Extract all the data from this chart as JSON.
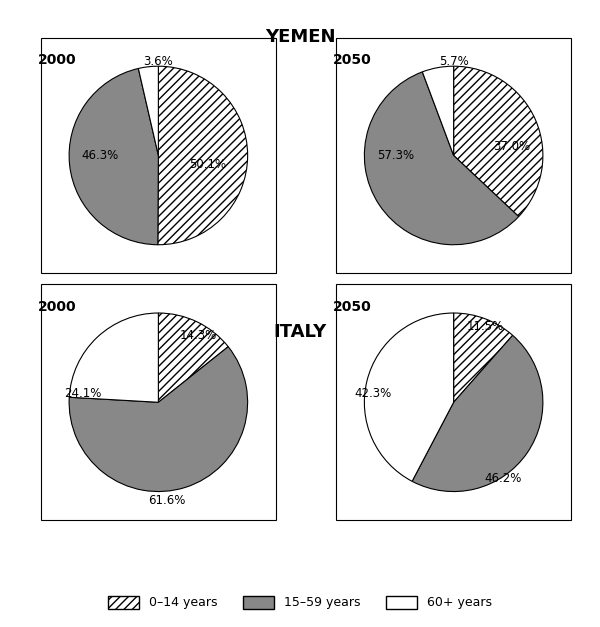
{
  "title_yemen": "YEMEN",
  "title_italy": "ITALY",
  "charts": [
    {
      "label": "2000",
      "country": "Yemen",
      "values": [
        50.1,
        46.3,
        3.6
      ],
      "pct_labels": [
        "50.1%",
        "46.3%",
        "3.6%"
      ]
    },
    {
      "label": "2050",
      "country": "Yemen",
      "values": [
        37.0,
        57.3,
        5.7
      ],
      "pct_labels": [
        "37.0%",
        "57.3%",
        "5.7%"
      ]
    },
    {
      "label": "2000",
      "country": "Italy",
      "values": [
        14.3,
        61.6,
        24.1
      ],
      "pct_labels": [
        "14.3%",
        "61.6%",
        "24.1%"
      ]
    },
    {
      "label": "2050",
      "country": "Italy",
      "values": [
        11.5,
        46.2,
        42.3
      ],
      "pct_labels": [
        "11.5%",
        "46.2%",
        "42.3%"
      ]
    }
  ],
  "legend_labels": [
    "0–14 years",
    "15–59 years",
    "60+ years"
  ],
  "colors": [
    "white",
    "#888888",
    "white"
  ],
  "hatches": [
    "////",
    "",
    ""
  ],
  "edge_colors": [
    "black",
    "black",
    "black"
  ],
  "slice_order": [
    "0-14",
    "15-59",
    "60+"
  ],
  "bg_color": "#f0f0f0",
  "startangle_yemen_2000": 90,
  "startangle_yemen_2050": 90,
  "startangle_italy_2000": 90,
  "startangle_italy_2050": 90
}
